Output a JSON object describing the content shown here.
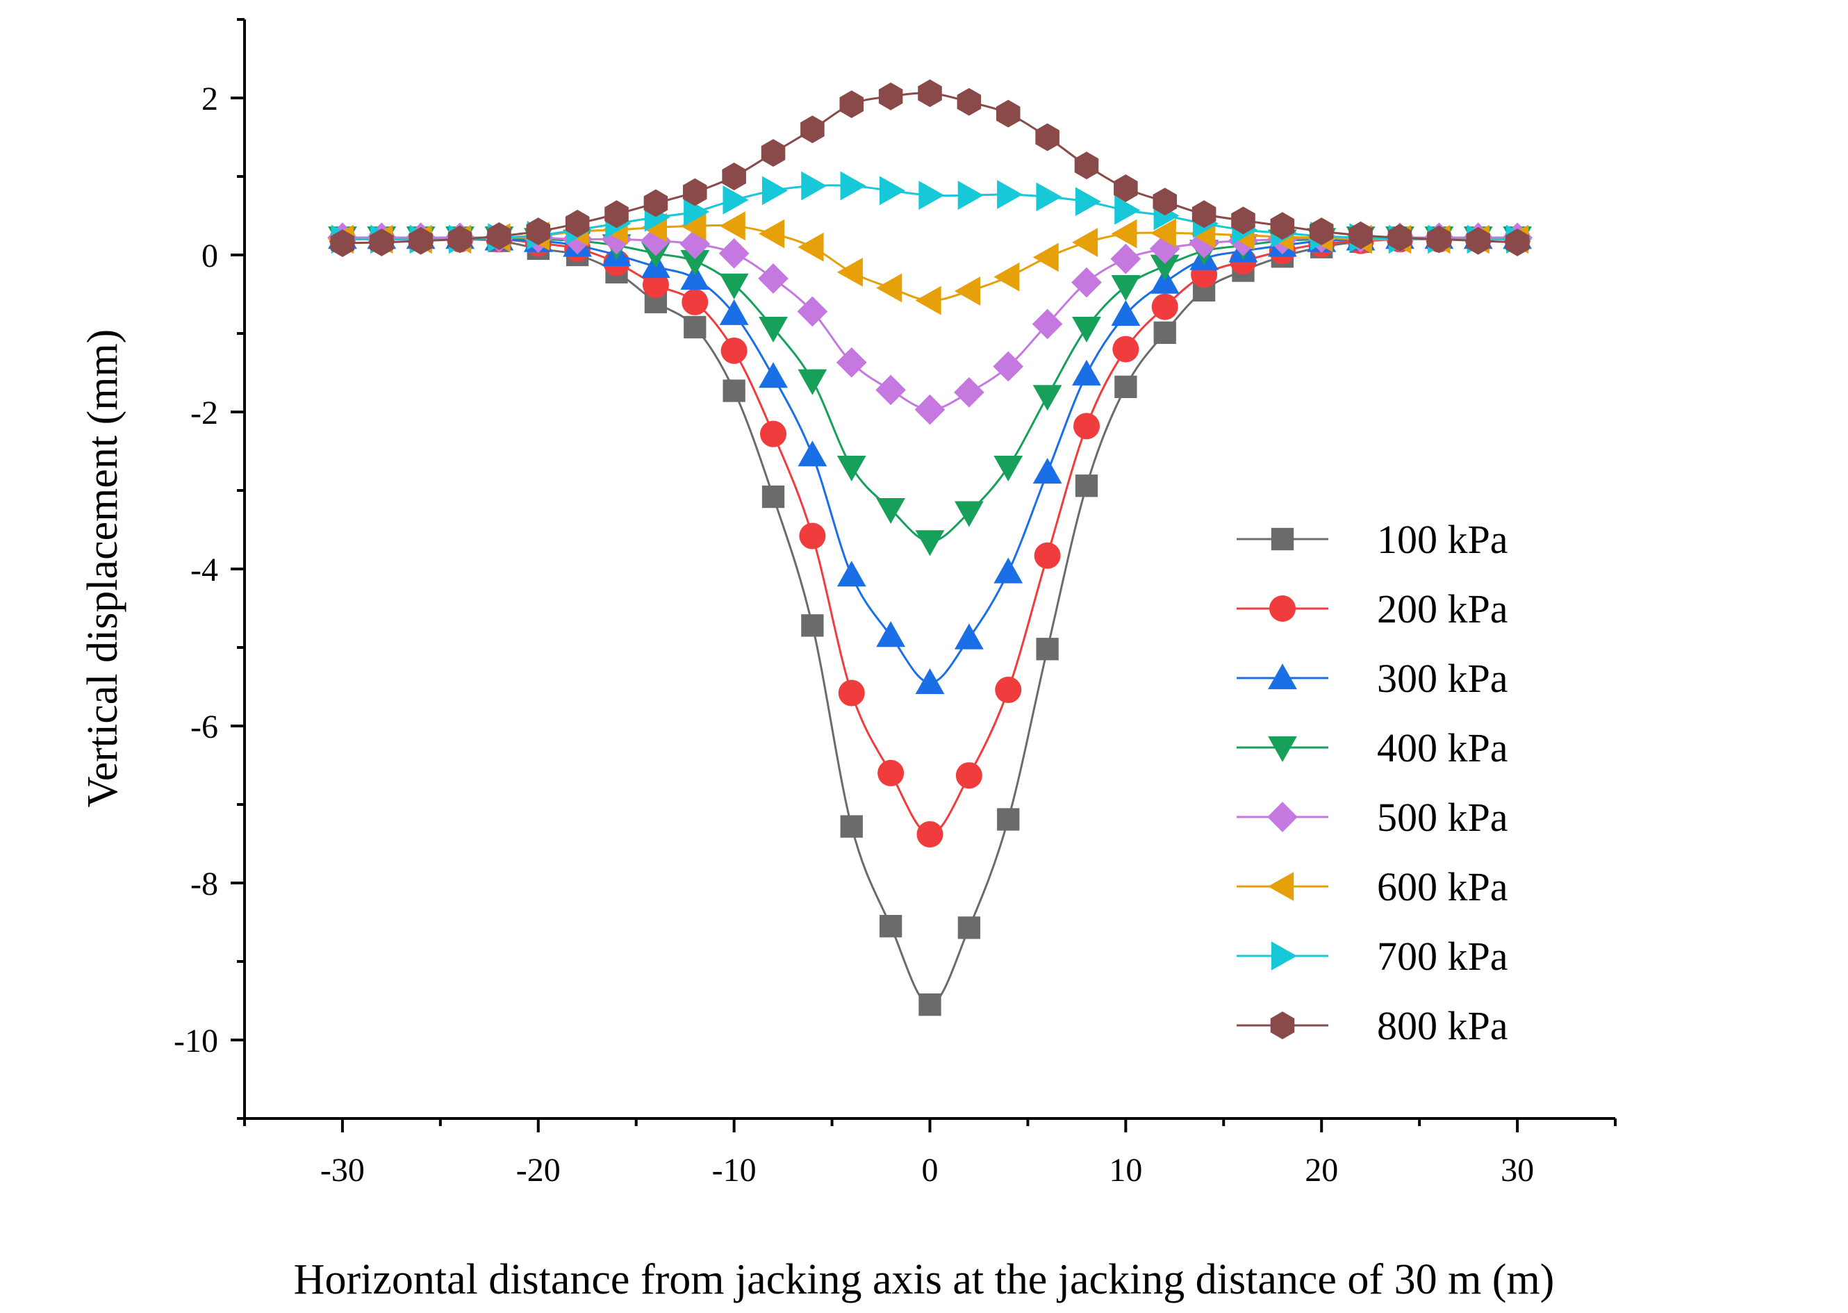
{
  "chart_data": {
    "type": "line",
    "title": "",
    "xlabel": "Horizontal distance from jacking axis at the jacking distance of 30 m (m)",
    "ylabel": "Vertical displacement (mm)",
    "xlim": [
      -35,
      35
    ],
    "ylim": [
      -11,
      3
    ],
    "xticks": [
      -30,
      -20,
      -10,
      0,
      10,
      20,
      30
    ],
    "yticks": [
      2,
      0,
      -2,
      -4,
      -6,
      -8,
      -10
    ],
    "x_tick_labels": [
      "-30",
      "-20",
      "-10",
      "0",
      "10",
      "20",
      "30"
    ],
    "y_tick_labels": [
      "2",
      "0",
      "-2",
      "-4",
      "-6",
      "-8",
      "-10"
    ],
    "legend_position": "right",
    "x": [
      -30,
      -28,
      -26,
      -24,
      -22,
      -20,
      -18,
      -16,
      -14,
      -12,
      -10,
      -8,
      -6,
      -4,
      -2,
      0,
      2,
      4,
      6,
      8,
      10,
      12,
      14,
      16,
      18,
      20,
      22,
      24,
      26,
      28,
      30
    ],
    "series": [
      {
        "name": "100 kPa",
        "color": "#6b6b6b",
        "marker": "square",
        "values": [
          0.2,
          0.2,
          0.2,
          0.2,
          0.18,
          0.08,
          0.0,
          -0.22,
          -0.6,
          -0.92,
          -1.73,
          -3.08,
          -4.72,
          -7.28,
          -8.55,
          -9.55,
          -8.57,
          -7.19,
          -5.02,
          -2.94,
          -1.68,
          -0.99,
          -0.45,
          -0.2,
          -0.02,
          0.1,
          0.17,
          0.2,
          0.2,
          0.2,
          0.2
        ]
      },
      {
        "name": "200 kPa",
        "color": "#f03c3c",
        "marker": "circle",
        "values": [
          0.2,
          0.2,
          0.2,
          0.2,
          0.2,
          0.15,
          0.08,
          -0.1,
          -0.38,
          -0.6,
          -1.22,
          -2.28,
          -3.58,
          -5.58,
          -6.6,
          -7.38,
          -6.63,
          -5.54,
          -3.83,
          -2.18,
          -1.2,
          -0.66,
          -0.25,
          -0.08,
          0.05,
          0.14,
          0.18,
          0.2,
          0.2,
          0.2,
          0.2
        ]
      },
      {
        "name": "300 kPa",
        "color": "#1a6ee6",
        "marker": "triangle-up",
        "values": [
          0.22,
          0.22,
          0.22,
          0.22,
          0.2,
          0.18,
          0.12,
          0.0,
          -0.15,
          -0.3,
          -0.75,
          -1.55,
          -2.55,
          -4.08,
          -4.85,
          -5.45,
          -4.88,
          -4.04,
          -2.77,
          -1.52,
          -0.76,
          -0.35,
          -0.05,
          0.05,
          0.12,
          0.18,
          0.2,
          0.22,
          0.22,
          0.22,
          0.22
        ]
      },
      {
        "name": "400 kPa",
        "color": "#17a05a",
        "marker": "triangle-down",
        "values": [
          0.22,
          0.22,
          0.22,
          0.22,
          0.22,
          0.2,
          0.18,
          0.12,
          0.02,
          -0.08,
          -0.38,
          -0.93,
          -1.6,
          -2.7,
          -3.24,
          -3.65,
          -3.28,
          -2.7,
          -1.8,
          -0.93,
          -0.4,
          -0.14,
          0.05,
          0.12,
          0.18,
          0.2,
          0.22,
          0.22,
          0.22,
          0.22,
          0.22
        ]
      },
      {
        "name": "500 kPa",
        "color": "#c478e0",
        "marker": "diamond",
        "values": [
          0.22,
          0.22,
          0.22,
          0.22,
          0.22,
          0.22,
          0.2,
          0.2,
          0.18,
          0.14,
          0.02,
          -0.3,
          -0.72,
          -1.37,
          -1.72,
          -1.97,
          -1.75,
          -1.42,
          -0.88,
          -0.35,
          -0.05,
          0.08,
          0.15,
          0.18,
          0.2,
          0.22,
          0.22,
          0.22,
          0.22,
          0.22,
          0.22
        ]
      },
      {
        "name": "600 kPa",
        "color": "#e6a00a",
        "marker": "triangle-left",
        "values": [
          0.2,
          0.2,
          0.2,
          0.2,
          0.22,
          0.24,
          0.3,
          0.32,
          0.35,
          0.37,
          0.37,
          0.27,
          0.1,
          -0.22,
          -0.42,
          -0.58,
          -0.46,
          -0.28,
          -0.03,
          0.16,
          0.27,
          0.28,
          0.27,
          0.25,
          0.23,
          0.22,
          0.2,
          0.2,
          0.2,
          0.2,
          0.2
        ]
      },
      {
        "name": "700 kPa",
        "color": "#16c8d8",
        "marker": "triangle-right",
        "values": [
          0.2,
          0.2,
          0.2,
          0.2,
          0.22,
          0.25,
          0.32,
          0.4,
          0.48,
          0.55,
          0.7,
          0.82,
          0.88,
          0.88,
          0.82,
          0.76,
          0.76,
          0.77,
          0.74,
          0.68,
          0.57,
          0.5,
          0.4,
          0.32,
          0.28,
          0.24,
          0.22,
          0.2,
          0.2,
          0.2,
          0.2
        ]
      },
      {
        "name": "800 kPa",
        "color": "#8b4a4a",
        "marker": "hexagon",
        "values": [
          0.15,
          0.16,
          0.18,
          0.2,
          0.24,
          0.3,
          0.4,
          0.52,
          0.66,
          0.8,
          1.0,
          1.3,
          1.6,
          1.92,
          2.02,
          2.06,
          1.95,
          1.8,
          1.5,
          1.14,
          0.85,
          0.68,
          0.52,
          0.44,
          0.37,
          0.3,
          0.25,
          0.22,
          0.2,
          0.18,
          0.16
        ]
      }
    ]
  }
}
